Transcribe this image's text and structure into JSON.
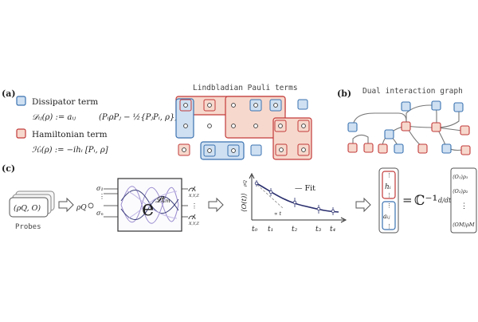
{
  "colors": {
    "dissipator_fill": "#cfe0f2",
    "dissipator_stroke": "#3a72b0",
    "hamiltonian_fill": "#f7d8cc",
    "hamiltonian_stroke": "#c23a3a",
    "dark_curve": "#2a2f6e",
    "wave_purple": "#9b8ccf"
  },
  "panel_a": {
    "label": "(a)",
    "dissipator": {
      "name": "Dissipator term",
      "formula_lhs": "𝒟ᵢⱼ(ρ) := aᵢⱼ",
      "formula_rhs": "(PᵢρPⱼ − ½{PⱼPᵢ, ρ})"
    },
    "hamiltonian": {
      "name": "Hamiltonian term",
      "formula": "ℋᵢ(ρ) := −ihᵢ [Pᵢ, ρ]"
    },
    "grid_title": "Lindbladian Pauli terms"
  },
  "panel_b": {
    "label": "(b)",
    "title": "Dual interaction graph"
  },
  "panel_c": {
    "label": "(c)",
    "probe_text": "(ρQ, O)",
    "probe_caption": "Probes",
    "rho_label": "ρQ",
    "sigma_top": "σ₁",
    "sigma_bottom": "σₙ",
    "exp_base": "e",
    "exp_power": "𝓛tₘ",
    "meas_label": "X,Y,Z",
    "fit_label": "— Fit",
    "y_axis_label": "⟨O(t)⟩",
    "y_axis_sub": "ρQ",
    "x_ticks": [
      "t₀",
      "t₁",
      "t₂",
      "t₃",
      "t₄"
    ],
    "slope_label": "∝ t",
    "vec_h": "hᵢ",
    "vec_a": "aᵢⱼ",
    "equals": "=",
    "matrix_symbol": "ℂ⁻¹",
    "derivative": "d/dt",
    "obs_1": "⟨O₁⟩ρ₁",
    "obs_2": "⟨O₂⟩ρ₂",
    "obs_m": "⟨OM⟩ρM",
    "dots": "⋮"
  }
}
